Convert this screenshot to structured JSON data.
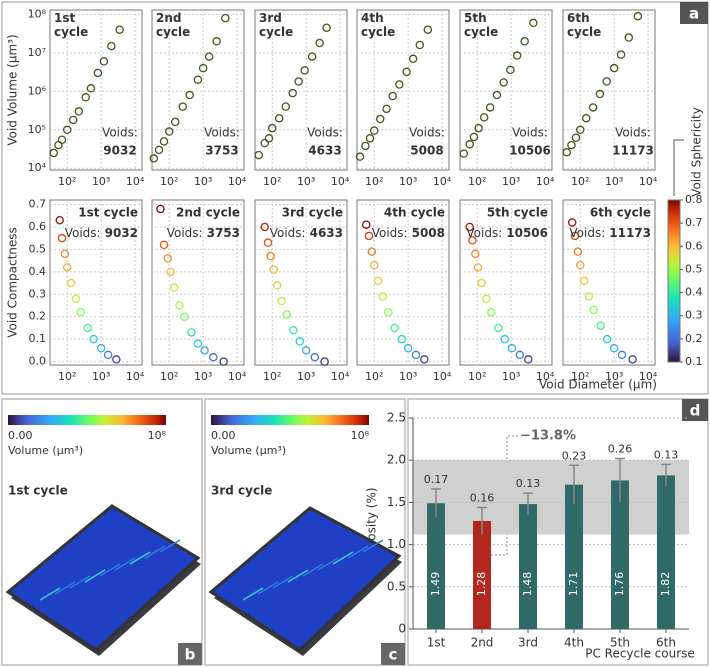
{
  "panels": [
    "a",
    "b",
    "c",
    "d"
  ],
  "chart_data": [
    {
      "type": "scatter",
      "ylabel": "Void Volume (µm³)",
      "xscale": "log",
      "yscale": "log",
      "xlim": [
        31,
        16000
      ],
      "ylim": [
        9000,
        130000000
      ],
      "xticks": [
        {
          "value": 100,
          "label": "10²"
        },
        {
          "value": 1000,
          "label": "10³"
        },
        {
          "value": 10000,
          "label": "10⁴"
        }
      ],
      "yticks": [
        {
          "value": 10000,
          "label": "10⁴"
        },
        {
          "value": 100000,
          "label": "10⁵"
        },
        {
          "value": 1000000,
          "label": "10⁶"
        },
        {
          "value": 10000000,
          "label": "10⁷"
        },
        {
          "value": 100000000,
          "label": "10⁸"
        }
      ],
      "color": "#3b5a1c",
      "grid": true,
      "panels": [
        {
          "title": "1st cycle",
          "voids_label": "Voids:",
          "voids": 9032,
          "x": [
            40,
            55,
            70,
            100,
            150,
            220,
            350,
            500,
            800,
            1200,
            2000,
            3500
          ],
          "y": [
            25000,
            40000,
            55000,
            100000,
            180000,
            300000,
            700000,
            1200000,
            3000000,
            6000000,
            15000000,
            40000000
          ]
        },
        {
          "title": "2nd cycle",
          "voids_label": "Voids:",
          "voids": 3753,
          "x": [
            35,
            50,
            70,
            100,
            150,
            250,
            400,
            700,
            1000,
            1500,
            2500,
            4500
          ],
          "y": [
            18000,
            30000,
            50000,
            90000,
            160000,
            400000,
            800000,
            2000000,
            4000000,
            8000000,
            20000000,
            80000000
          ]
        },
        {
          "title": "3rd cycle",
          "voids_label": "Voids:",
          "voids": 4633,
          "x": [
            40,
            60,
            80,
            100,
            160,
            250,
            400,
            600,
            900,
            1500,
            2500,
            4000
          ],
          "y": [
            22000,
            45000,
            60000,
            110000,
            200000,
            400000,
            900000,
            1800000,
            3500000,
            8000000,
            18000000,
            45000000
          ]
        },
        {
          "title": "4th cycle",
          "voids_label": "Voids:",
          "voids": 5008,
          "x": [
            38,
            55,
            75,
            100,
            150,
            230,
            350,
            550,
            900,
            1400,
            2200,
            3800
          ],
          "y": [
            20000,
            38000,
            60000,
            95000,
            190000,
            350000,
            750000,
            1500000,
            3200000,
            7000000,
            16000000,
            40000000
          ]
        },
        {
          "title": "5th cycle",
          "voids_label": "Voids:",
          "voids": 10506,
          "x": [
            40,
            60,
            80,
            110,
            160,
            240,
            380,
            600,
            950,
            1500,
            2500,
            4500
          ],
          "y": [
            24000,
            42000,
            65000,
            110000,
            210000,
            380000,
            800000,
            1700000,
            3600000,
            8500000,
            20000000,
            60000000
          ]
        },
        {
          "title": "6th cycle",
          "voids_label": "Voids:",
          "voids": 11173,
          "x": [
            40,
            55,
            75,
            100,
            150,
            240,
            380,
            600,
            1000,
            1600,
            2700,
            5000
          ],
          "y": [
            26000,
            40000,
            62000,
            100000,
            200000,
            380000,
            850000,
            1800000,
            4000000,
            9000000,
            25000000,
            90000000
          ]
        }
      ]
    },
    {
      "type": "scatter",
      "ylabel": "Void Compactness",
      "xlabel": "Void Diameter (µm)",
      "xscale": "log",
      "xlim": [
        31,
        16000
      ],
      "ylim": [
        -0.015,
        0.72
      ],
      "xticks": [
        {
          "value": 100,
          "label": "10²"
        },
        {
          "value": 1000,
          "label": "10³"
        },
        {
          "value": 10000,
          "label": "10⁴"
        }
      ],
      "yticks": [
        {
          "value": 0,
          "label": "0.0"
        },
        0.1,
        0.2,
        0.3,
        0.4,
        0.5,
        0.6,
        0.7
      ],
      "grid": true,
      "colorbar": {
        "label": "Void Sphericity",
        "lim": [
          0.1,
          0.8
        ],
        "ticks": [
          0.1,
          0.2,
          0.3,
          0.4,
          0.5,
          0.6,
          0.7,
          0.8
        ],
        "colormap": "turbo"
      },
      "panels": [
        {
          "title": "1st cycle",
          "voids_label": "Voids:",
          "voids": 9032,
          "x": [
            60,
            70,
            85,
            100,
            130,
            180,
            250,
            400,
            600,
            1000,
            1600,
            2800
          ],
          "y": [
            0.63,
            0.55,
            0.48,
            0.42,
            0.35,
            0.28,
            0.22,
            0.15,
            0.1,
            0.06,
            0.03,
            0.01
          ],
          "c": [
            0.78,
            0.72,
            0.66,
            0.62,
            0.58,
            0.53,
            0.48,
            0.42,
            0.36,
            0.3,
            0.22,
            0.15
          ]
        },
        {
          "title": "2nd cycle",
          "voids_label": "Voids:",
          "voids": 3753,
          "x": [
            55,
            70,
            90,
            110,
            140,
            200,
            280,
            450,
            700,
            1100,
            2000,
            4000
          ],
          "y": [
            0.68,
            0.52,
            0.46,
            0.4,
            0.33,
            0.25,
            0.2,
            0.13,
            0.08,
            0.05,
            0.02,
            0.0
          ],
          "c": [
            0.8,
            0.7,
            0.65,
            0.6,
            0.56,
            0.5,
            0.46,
            0.4,
            0.34,
            0.28,
            0.2,
            0.14
          ]
        },
        {
          "title": "3rd cycle",
          "voids_label": "Voids:",
          "voids": 4633,
          "x": [
            60,
            75,
            90,
            110,
            140,
            190,
            270,
            420,
            650,
            1000,
            1800,
            3500
          ],
          "y": [
            0.6,
            0.53,
            0.47,
            0.41,
            0.34,
            0.27,
            0.21,
            0.14,
            0.09,
            0.05,
            0.02,
            0.0
          ],
          "c": [
            0.76,
            0.71,
            0.66,
            0.61,
            0.57,
            0.52,
            0.47,
            0.41,
            0.35,
            0.29,
            0.21,
            0.14
          ]
        },
        {
          "title": "4th cycle",
          "voids_label": "Voids:",
          "voids": 5008,
          "x": [
            58,
            70,
            85,
            100,
            130,
            180,
            260,
            400,
            650,
            1000,
            1700,
            3000
          ],
          "y": [
            0.61,
            0.56,
            0.49,
            0.43,
            0.36,
            0.29,
            0.22,
            0.15,
            0.1,
            0.06,
            0.03,
            0.01
          ],
          "c": [
            0.79,
            0.73,
            0.67,
            0.62,
            0.58,
            0.54,
            0.48,
            0.42,
            0.36,
            0.3,
            0.22,
            0.15
          ]
        },
        {
          "title": "5th cycle",
          "voids_label": "Voids:",
          "voids": 10506,
          "x": [
            60,
            72,
            88,
            105,
            135,
            185,
            260,
            420,
            650,
            1050,
            1800,
            3200
          ],
          "y": [
            0.6,
            0.54,
            0.48,
            0.42,
            0.35,
            0.28,
            0.22,
            0.15,
            0.1,
            0.06,
            0.03,
            0.01
          ],
          "c": [
            0.77,
            0.72,
            0.66,
            0.62,
            0.58,
            0.53,
            0.48,
            0.42,
            0.36,
            0.3,
            0.22,
            0.15
          ]
        },
        {
          "title": "6th cycle",
          "voids_label": "Voids:",
          "voids": 11173,
          "x": [
            58,
            70,
            85,
            100,
            130,
            180,
            250,
            400,
            620,
            1000,
            1700,
            3500
          ],
          "y": [
            0.62,
            0.56,
            0.49,
            0.43,
            0.36,
            0.29,
            0.23,
            0.16,
            0.1,
            0.06,
            0.03,
            0.01
          ],
          "c": [
            0.78,
            0.73,
            0.67,
            0.63,
            0.59,
            0.54,
            0.48,
            0.42,
            0.36,
            0.3,
            0.22,
            0.15
          ]
        }
      ]
    },
    {
      "type": "bar",
      "ylabel": "Porosity (%)",
      "xlabel": "PC Recycle course",
      "categories": [
        "1st",
        "2nd",
        "3rd",
        "4th",
        "5th",
        "6th"
      ],
      "values": [
        1.49,
        1.28,
        1.48,
        1.71,
        1.76,
        1.82
      ],
      "errors": [
        0.17,
        0.16,
        0.13,
        0.23,
        0.26,
        0.13
      ],
      "colors": [
        "#2f6a66",
        "#b2281f",
        "#2f6a66",
        "#2f6a66",
        "#2f6a66",
        "#2f6a66"
      ],
      "ylim": [
        0,
        2.5
      ],
      "yticks": [
        0,
        0.5,
        {
          "value": 1,
          "label": "1.0"
        },
        1.5,
        {
          "value": 2,
          "label": "2.0"
        },
        2.5
      ],
      "shaded_range": [
        1.12,
        2.0
      ],
      "annotation": "−13.8%",
      "grid": true
    }
  ],
  "renders": [
    {
      "cmin": "0.00",
      "cmax": "10⁸",
      "cbar_label": "Volume (µm³)",
      "title": "1st cycle"
    },
    {
      "cmin": "0.00",
      "cmax": "10⁸",
      "cbar_label": "Volume (µm³)",
      "title": "3rd cycle"
    }
  ]
}
